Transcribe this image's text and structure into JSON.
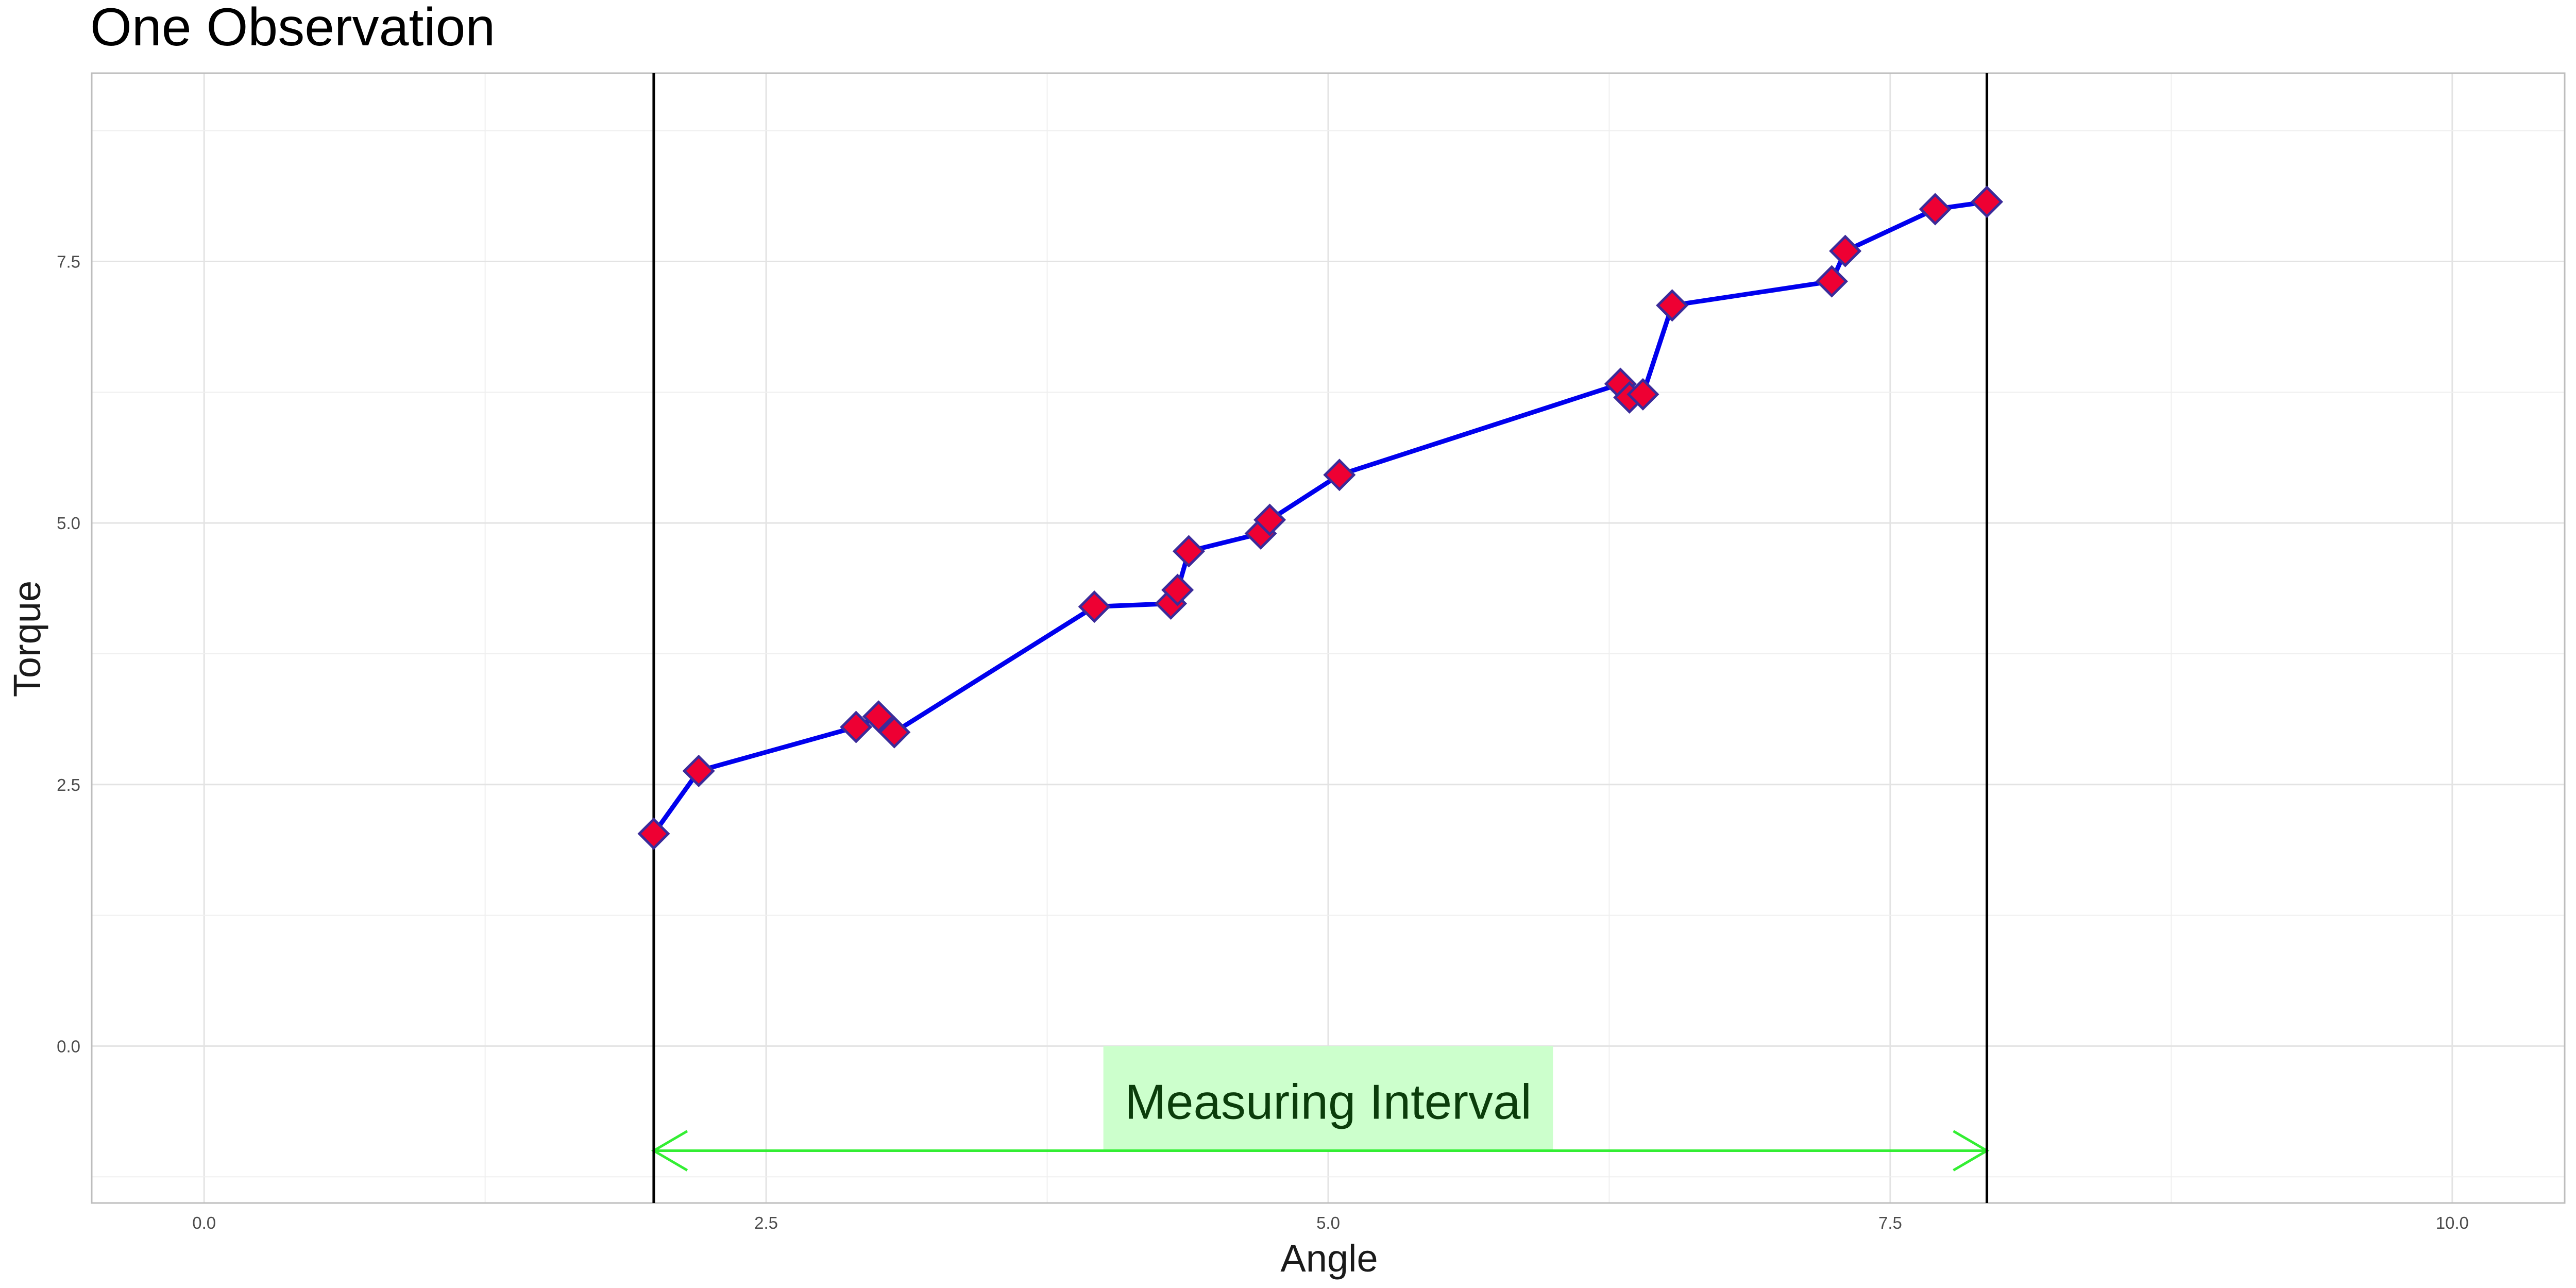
{
  "chart_data": {
    "type": "line",
    "title": "One Observation",
    "xlabel": "Angle",
    "ylabel": "Torque",
    "xlim": [
      -0.5,
      10.5
    ],
    "ylim": [
      -1.5,
      9.3
    ],
    "x_ticks": [
      0,
      2.5,
      5,
      7.5,
      10
    ],
    "x_tick_labels": [
      "0.0",
      "2.5",
      "5.0",
      "7.5",
      "10.0"
    ],
    "y_ticks": [
      0,
      2.5,
      5,
      7.5
    ],
    "y_tick_labels": [
      "0.0",
      "2.5",
      "5.0",
      "7.5"
    ],
    "grid": true,
    "series": [
      {
        "x": [
          2.0,
          2.2,
          2.9,
          3.0,
          3.07,
          3.96,
          4.3,
          4.33,
          4.38,
          4.7,
          4.74,
          5.05,
          6.3,
          6.34,
          6.4,
          6.53,
          7.24,
          7.3,
          7.7,
          7.93
        ],
        "y": [
          2.03,
          2.63,
          3.05,
          3.15,
          3.0,
          4.2,
          4.23,
          4.36,
          4.73,
          4.9,
          5.03,
          5.46,
          6.33,
          6.2,
          6.23,
          7.08,
          7.31,
          7.6,
          8.0,
          8.07
        ],
        "line_color": "#0000ee",
        "marker": "diamond",
        "marker_fill": "#ee0033",
        "marker_stroke": "#3b2b9a"
      }
    ],
    "vlines": [
      2.0,
      7.93
    ],
    "annotation": {
      "text": "Measuring Interval",
      "x_range": [
        2.0,
        7.93
      ],
      "arrow_y": -1.0,
      "box_x_range": [
        4.0,
        6.0
      ],
      "box_y_range": [
        -1.0,
        0.0
      ],
      "box_fill": "#ccffcc",
      "arrow_color": "#33ee33"
    }
  }
}
